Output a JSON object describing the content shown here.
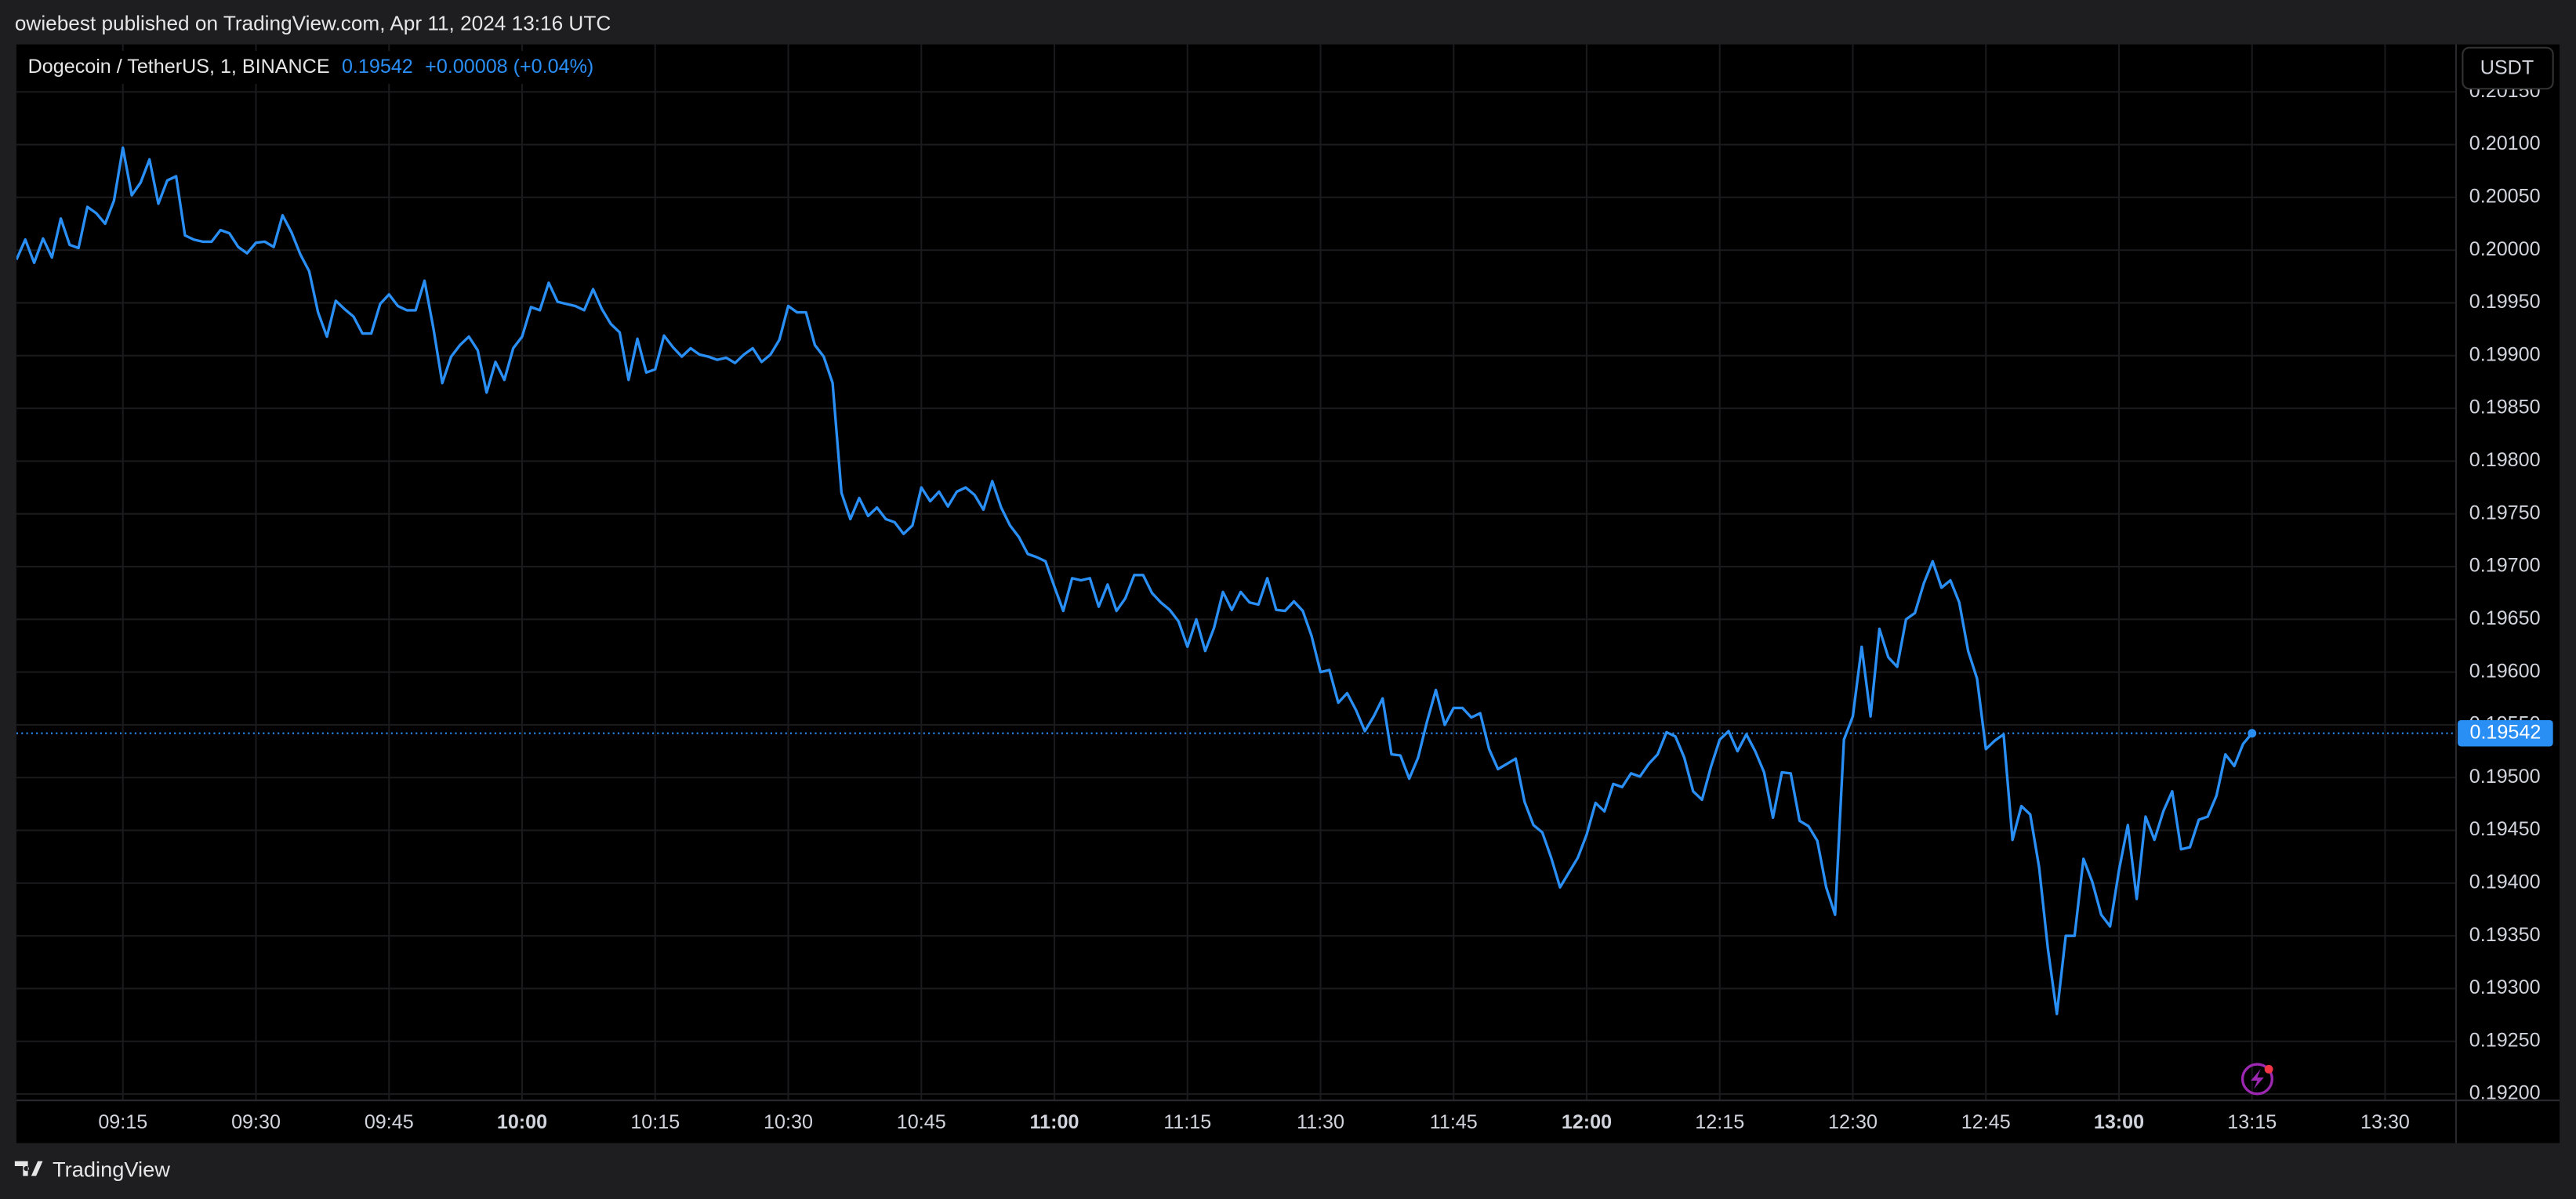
{
  "header": {
    "text": "owiebest published on TradingView.com, Apr 11, 2024 13:16 UTC"
  },
  "currency_button": "USDT",
  "footer": {
    "brand": "TradingView"
  },
  "chart_data": {
    "type": "line",
    "change_label": "+0.00008 (+0.04%)",
    "x": [
      "09:03",
      "09:04",
      "09:05",
      "09:06",
      "09:07",
      "09:08",
      "09:09",
      "09:10",
      "09:11",
      "09:12",
      "09:13",
      "09:14",
      "09:15",
      "09:16",
      "09:17",
      "09:18",
      "09:19",
      "09:20",
      "09:21",
      "09:22",
      "09:23",
      "09:24",
      "09:25",
      "09:26",
      "09:27",
      "09:28",
      "09:29",
      "09:30",
      "09:31",
      "09:32",
      "09:33",
      "09:34",
      "09:35",
      "09:36",
      "09:37",
      "09:38",
      "09:39",
      "09:40",
      "09:41",
      "09:42",
      "09:43",
      "09:44",
      "09:45",
      "09:46",
      "09:47",
      "09:48",
      "09:49",
      "09:50",
      "09:51",
      "09:52",
      "09:53",
      "09:54",
      "09:55",
      "09:56",
      "09:57",
      "09:58",
      "09:59",
      "10:00",
      "10:01",
      "10:02",
      "10:03",
      "10:04",
      "10:05",
      "10:06",
      "10:07",
      "10:08",
      "10:09",
      "10:10",
      "10:11",
      "10:12",
      "10:13",
      "10:14",
      "10:15",
      "10:16",
      "10:17",
      "10:18",
      "10:19",
      "10:20",
      "10:21",
      "10:22",
      "10:23",
      "10:24",
      "10:25",
      "10:26",
      "10:27",
      "10:28",
      "10:29",
      "10:30",
      "10:31",
      "10:32",
      "10:33",
      "10:34",
      "10:35",
      "10:36",
      "10:37",
      "10:38",
      "10:39",
      "10:40",
      "10:41",
      "10:42",
      "10:43",
      "10:44",
      "10:45",
      "10:46",
      "10:47",
      "10:48",
      "10:49",
      "10:50",
      "10:51",
      "10:52",
      "10:53",
      "10:54",
      "10:55",
      "10:56",
      "10:57",
      "10:58",
      "10:59",
      "11:00",
      "11:01",
      "11:02",
      "11:03",
      "11:04",
      "11:05",
      "11:06",
      "11:07",
      "11:08",
      "11:09",
      "11:10",
      "11:11",
      "11:12",
      "11:13",
      "11:14",
      "11:15",
      "11:16",
      "11:17",
      "11:18",
      "11:19",
      "11:20",
      "11:21",
      "11:22",
      "11:23",
      "11:24",
      "11:25",
      "11:26",
      "11:27",
      "11:28",
      "11:29",
      "11:30",
      "11:31",
      "11:32",
      "11:33",
      "11:34",
      "11:35",
      "11:36",
      "11:37",
      "11:38",
      "11:39",
      "11:40",
      "11:41",
      "11:42",
      "11:43",
      "11:44",
      "11:45",
      "11:46",
      "11:47",
      "11:48",
      "11:49",
      "11:50",
      "11:51",
      "11:52",
      "11:53",
      "11:54",
      "11:55",
      "11:56",
      "11:57",
      "11:58",
      "11:59",
      "12:00",
      "12:01",
      "12:02",
      "12:03",
      "12:04",
      "12:05",
      "12:06",
      "12:07",
      "12:08",
      "12:09",
      "12:10",
      "12:11",
      "12:12",
      "12:13",
      "12:14",
      "12:15",
      "12:16",
      "12:17",
      "12:18",
      "12:19",
      "12:20",
      "12:21",
      "12:22",
      "12:23",
      "12:24",
      "12:25",
      "12:26",
      "12:27",
      "12:28",
      "12:29",
      "12:30",
      "12:31",
      "12:32",
      "12:33",
      "12:34",
      "12:35",
      "12:36",
      "12:37",
      "12:38",
      "12:39",
      "12:40",
      "12:41",
      "12:42",
      "12:43",
      "12:44",
      "12:45",
      "12:46",
      "12:47",
      "12:48",
      "12:49",
      "12:50",
      "12:51",
      "12:52",
      "12:53",
      "12:54",
      "12:55",
      "12:56",
      "12:57",
      "12:58",
      "12:59",
      "13:00",
      "13:01",
      "13:02",
      "13:03",
      "13:04",
      "13:05",
      "13:06",
      "13:07",
      "13:08",
      "13:09",
      "13:10",
      "13:11",
      "13:12",
      "13:13",
      "13:14",
      "13:15"
    ],
    "series": [
      {
        "name": "Dogecoin / TetherUS, 1, BINANCE",
        "color": "#2a8ff5",
        "values": [
          0.19991,
          0.2001,
          0.19988,
          0.20011,
          0.19993,
          0.2003,
          0.20005,
          0.20002,
          0.20041,
          0.20035,
          0.20025,
          0.20047,
          0.20097,
          0.20052,
          0.20064,
          0.20086,
          0.20044,
          0.20066,
          0.2007,
          0.20014,
          0.2001,
          0.20008,
          0.20008,
          0.20019,
          0.20016,
          0.20003,
          0.19997,
          0.20007,
          0.20008,
          0.20003,
          0.20033,
          0.20017,
          0.19996,
          0.1998,
          0.19941,
          0.19918,
          0.19952,
          0.19944,
          0.19937,
          0.19921,
          0.19921,
          0.19949,
          0.19958,
          0.19947,
          0.19943,
          0.19943,
          0.19971,
          0.19926,
          0.19874,
          0.19899,
          0.1991,
          0.19918,
          0.19905,
          0.19865,
          0.19894,
          0.19877,
          0.19907,
          0.19918,
          0.19946,
          0.19943,
          0.19969,
          0.19951,
          0.19949,
          0.19947,
          0.19943,
          0.19963,
          0.19944,
          0.1993,
          0.19922,
          0.19877,
          0.19916,
          0.19884,
          0.19887,
          0.19919,
          0.19908,
          0.19899,
          0.19907,
          0.19901,
          0.19899,
          0.19896,
          0.19898,
          0.19893,
          0.19901,
          0.19907,
          0.19894,
          0.19901,
          0.19915,
          0.19947,
          0.19941,
          0.19941,
          0.1991,
          0.19899,
          0.19874,
          0.1977,
          0.19745,
          0.19765,
          0.19748,
          0.19756,
          0.19745,
          0.19742,
          0.19731,
          0.19739,
          0.19775,
          0.19762,
          0.19771,
          0.19757,
          0.19771,
          0.19775,
          0.19768,
          0.19754,
          0.19781,
          0.19756,
          0.19739,
          0.19728,
          0.19712,
          0.19709,
          0.19705,
          0.19681,
          0.19658,
          0.19689,
          0.19687,
          0.19689,
          0.19662,
          0.19683,
          0.19658,
          0.1967,
          0.19692,
          0.19692,
          0.19675,
          0.19666,
          0.19659,
          0.19648,
          0.19624,
          0.1965,
          0.1962,
          0.19642,
          0.19676,
          0.19659,
          0.19676,
          0.19666,
          0.19664,
          0.19689,
          0.19659,
          0.19658,
          0.19667,
          0.19658,
          0.19634,
          0.196,
          0.19602,
          0.19571,
          0.1958,
          0.19564,
          0.19544,
          0.19558,
          0.19575,
          0.19522,
          0.19521,
          0.19499,
          0.19519,
          0.19553,
          0.19583,
          0.1955,
          0.19566,
          0.19566,
          0.19557,
          0.19561,
          0.19527,
          0.19508,
          0.19513,
          0.19518,
          0.19477,
          0.19455,
          0.19448,
          0.19424,
          0.19396,
          0.1941,
          0.19424,
          0.19446,
          0.19476,
          0.19468,
          0.19494,
          0.19491,
          0.19504,
          0.19501,
          0.19513,
          0.19522,
          0.19543,
          0.19539,
          0.19519,
          0.19487,
          0.19479,
          0.1951,
          0.19536,
          0.19544,
          0.19525,
          0.19541,
          0.19525,
          0.19505,
          0.19462,
          0.19505,
          0.19504,
          0.19459,
          0.19454,
          0.1944,
          0.19396,
          0.1937,
          0.19536,
          0.19558,
          0.19624,
          0.19558,
          0.19641,
          0.19614,
          0.19605,
          0.1965,
          0.19656,
          0.19684,
          0.19705,
          0.1968,
          0.19687,
          0.19666,
          0.1962,
          0.19594,
          0.19527,
          0.19535,
          0.19541,
          0.19441,
          0.19473,
          0.19465,
          0.19415,
          0.19337,
          0.19276,
          0.1935,
          0.1935,
          0.19423,
          0.19401,
          0.1937,
          0.19359,
          0.19412,
          0.19455,
          0.19385,
          0.19463,
          0.19441,
          0.19468,
          0.19487,
          0.19432,
          0.19434,
          0.1946,
          0.19463,
          0.19483,
          0.19522,
          0.19511,
          0.19532,
          0.19542
        ]
      }
    ],
    "xlim": [
      "09:03",
      "13:38"
    ],
    "xticks": [
      "09:15",
      "09:30",
      "09:45",
      "10:00",
      "10:15",
      "10:30",
      "10:45",
      "11:00",
      "11:15",
      "11:30",
      "11:45",
      "12:00",
      "12:15",
      "12:30",
      "12:45",
      "13:00",
      "13:15",
      "13:30"
    ],
    "ylim": [
      0.19194,
      0.20195
    ],
    "yticks": [
      {
        "value": 0.192,
        "label": "0.19200"
      },
      {
        "value": 0.1925,
        "label": "0.19250"
      },
      {
        "value": 0.193,
        "label": "0.19300"
      },
      {
        "value": 0.1935,
        "label": "0.19350"
      },
      {
        "value": 0.194,
        "label": "0.19400"
      },
      {
        "value": 0.1945,
        "label": "0.19450"
      },
      {
        "value": 0.195,
        "label": "0.19500"
      },
      {
        "value": 0.1955,
        "label": "0.19550"
      },
      {
        "value": 0.196,
        "label": "0.19600"
      },
      {
        "value": 0.1965,
        "label": "0.19650"
      },
      {
        "value": 0.197,
        "label": "0.19700"
      },
      {
        "value": 0.1975,
        "label": "0.19750"
      },
      {
        "value": 0.198,
        "label": "0.19800"
      },
      {
        "value": 0.1985,
        "label": "0.19850"
      },
      {
        "value": 0.199,
        "label": "0.19900"
      },
      {
        "value": 0.1995,
        "label": "0.19950"
      },
      {
        "value": 0.2,
        "label": "0.20000"
      },
      {
        "value": 0.2005,
        "label": "0.20050"
      },
      {
        "value": 0.201,
        "label": "0.20100"
      },
      {
        "value": 0.2015,
        "label": "0.20150"
      }
    ],
    "grid": true,
    "last_price_line": true
  }
}
